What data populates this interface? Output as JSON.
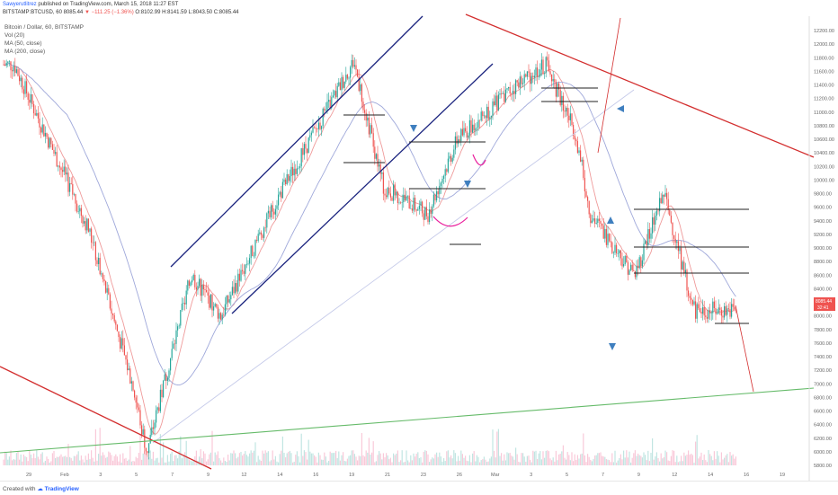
{
  "header": {
    "author": "Sawyerutlitrez",
    "published": "published on TradingView.com, March 15, 2018 11:27 EST",
    "symbol": "BITSTAMP:BTCUSD, 60",
    "price": "8085.44",
    "change": "−111.25 (−1.36%)",
    "ohlc": "O:8102.99 H:8141.59 L:8043.50 C:8085.44"
  },
  "legend": {
    "title": "Bitcoin / Dollar, 60, BITSTAMP",
    "vol": "Vol (20)",
    "ma1": "MA (50, close)",
    "ma2": "MA (200, close)"
  },
  "footer": {
    "created": "Created with",
    "brand": "TradingView"
  },
  "price_tag": {
    "price": "8085.44",
    "countdown": "32:41"
  },
  "colors": {
    "candle_up": "#26a69a",
    "candle_down": "#ef5350",
    "ma_fast": "#ef9a9a",
    "ma_slow": "#9fa8da",
    "channel": "#1a237e",
    "resistance": "#d32f2f",
    "support": "#66bb6a",
    "marker": "#3f7fbf",
    "arc": "#e91e9c"
  },
  "chart_data": {
    "type": "candlestick",
    "series": [
      {
        "name": "Bitcoin / Dollar, 60, BITSTAMP"
      }
    ],
    "ylim": [
      5800,
      12200
    ],
    "yticks": [
      12200,
      12000,
      11800,
      11600,
      11400,
      11200,
      11000,
      10800,
      10600,
      10400,
      10200,
      10000,
      9800,
      9600,
      9400,
      9200,
      9000,
      8800,
      8600,
      8400,
      8200,
      8000,
      7800,
      7600,
      7400,
      7200,
      7000,
      6800,
      6600,
      6400,
      6200,
      6000,
      5800
    ],
    "xticks": [
      "29",
      "Feb",
      "3",
      "5",
      "7",
      "9",
      "12",
      "14",
      "16",
      "19",
      "21",
      "23",
      "26",
      "Mar",
      "3",
      "5",
      "7",
      "9",
      "12",
      "14",
      "16",
      "19"
    ],
    "key_points": [
      {
        "x": "28 Jan",
        "y": 11700
      },
      {
        "x": "2 Feb",
        "y": 9300
      },
      {
        "x": "5 Feb",
        "y": 7000
      },
      {
        "x": "6 Feb",
        "y": 6000
      },
      {
        "x": "9 Feb",
        "y": 8600
      },
      {
        "x": "11 Feb",
        "y": 8000
      },
      {
        "x": "15 Feb",
        "y": 9800
      },
      {
        "x": "20 Feb",
        "y": 11750
      },
      {
        "x": "22 Feb",
        "y": 9900
      },
      {
        "x": "25 Feb",
        "y": 9500
      },
      {
        "x": "27 Feb",
        "y": 10600
      },
      {
        "x": "3 Mar",
        "y": 11400
      },
      {
        "x": "5 Mar",
        "y": 11700
      },
      {
        "x": "7 Mar",
        "y": 10700
      },
      {
        "x": "8 Mar",
        "y": 9500
      },
      {
        "x": "11 Mar",
        "y": 8600
      },
      {
        "x": "13 Mar",
        "y": 9800
      },
      {
        "x": "15 Mar",
        "y": 8085
      }
    ]
  }
}
